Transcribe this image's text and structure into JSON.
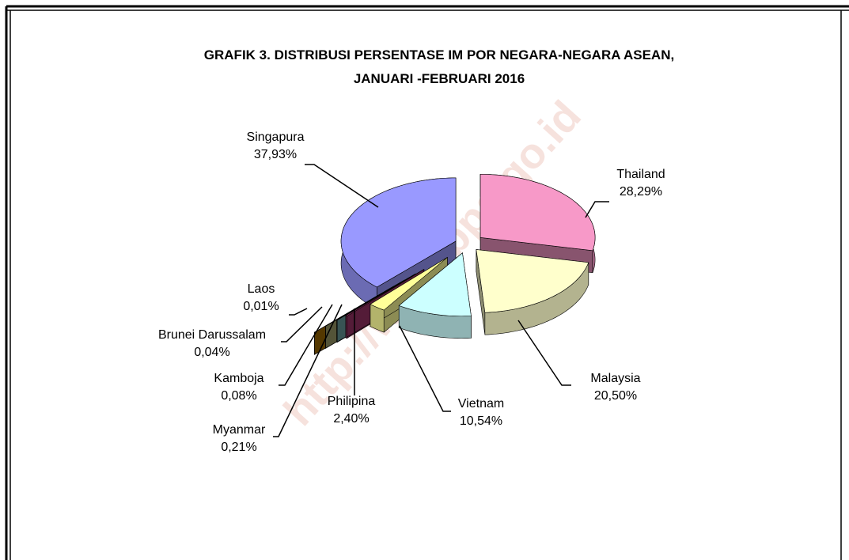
{
  "chart_data": {
    "type": "pie",
    "title": [
      "GRAFIK 3. DISTRIBUSI PERSENTASE IM POR NEGARA-NEGARA ASEAN,",
      "JANUARI -FEBRUARI 2016"
    ],
    "watermark": "http://www.bps.go.id",
    "categories": [
      "Thailand",
      "Malaysia",
      "Vietnam",
      "Philipina",
      "Myanmar",
      "Kamboja",
      "Brunei Darussalam",
      "Laos",
      "Singapura"
    ],
    "values": [
      28.29,
      20.5,
      10.54,
      2.4,
      0.21,
      0.08,
      0.04,
      0.01,
      37.93
    ],
    "value_labels": [
      "28,29%",
      "20,50%",
      "10,54%",
      "2,40%",
      "0,21%",
      "0,08%",
      "0,04%",
      "0,01%",
      "37,93%"
    ],
    "colors": [
      "#f799c8",
      "#ffffcc",
      "#ccffff",
      "#ffff99",
      "#993366",
      "#669999",
      "#999966",
      "#996600",
      "#9999ff"
    ]
  }
}
